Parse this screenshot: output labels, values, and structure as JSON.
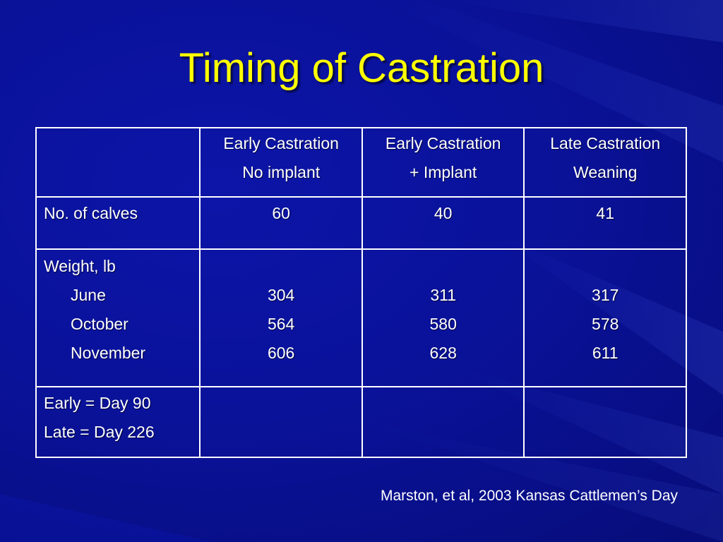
{
  "slide": {
    "title": "Timing of Castration",
    "citation": "Marston, et al, 2003 Kansas Cattlemen’s Day",
    "background_color": "#0a129a",
    "title_color": "#ffff00"
  },
  "table": {
    "headers": [
      {
        "line1": "",
        "line2": ""
      },
      {
        "line1": "Early Castration",
        "line2": "No implant"
      },
      {
        "line1": "Early Castration",
        "line2": "+ Implant"
      },
      {
        "line1": "Late Castration",
        "line2": "Weaning"
      }
    ],
    "calves_row": {
      "label": "No. of calves",
      "values": [
        "60",
        "40",
        "41"
      ]
    },
    "weight_row": {
      "label": "Weight, lb",
      "months": [
        "June",
        "October",
        "November"
      ],
      "values": [
        [
          "304",
          "564",
          "606"
        ],
        [
          "311",
          "580",
          "628"
        ],
        [
          "317",
          "578",
          "611"
        ]
      ]
    },
    "note_row": {
      "line1": "Early = Day 90",
      "line2": "Late = Day 226"
    }
  }
}
